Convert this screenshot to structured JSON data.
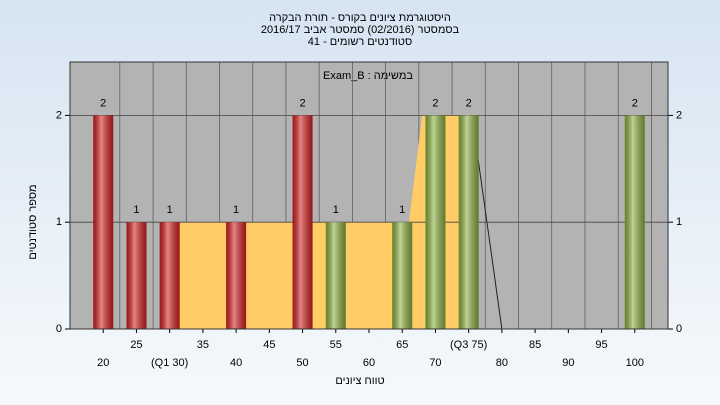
{
  "chart_data": {
    "type": "bar",
    "title": [
      "היסטוגרמת ציונים בקורס - תורת הבקרה",
      "בסמסטר  (02/2016)  סמסטר אביב 2016/17",
      "סטודנטים רשומים - 41"
    ],
    "subtitle": "Exam_B : במשימה",
    "x_label": "טווח ציונים",
    "y_label": "מספר סטודנטים",
    "x": [
      20,
      25,
      30,
      35,
      40,
      45,
      50,
      55,
      60,
      65,
      70,
      75,
      80,
      85,
      90,
      95,
      100
    ],
    "values": [
      2,
      1,
      1,
      0,
      1,
      0,
      2,
      1,
      0,
      1,
      2,
      2,
      0,
      0,
      0,
      0,
      2
    ],
    "value_labels": [
      "2",
      "1",
      "1",
      null,
      "1",
      null,
      "2",
      "1",
      null,
      "1",
      "2",
      "2",
      null,
      null,
      null,
      null,
      "2"
    ],
    "colors": [
      "#d42020",
      "#d42020",
      "#d42020",
      "#d42020",
      "#d42020",
      "#d42020",
      "#d42020",
      "#8db040",
      "#8db040",
      "#8db040",
      "#8db040",
      "#8db040",
      "#8db040",
      "#8db040",
      "#8db040",
      "#8db040",
      "#8db040"
    ],
    "xlim": [
      15,
      105
    ],
    "xticks": [
      20,
      25,
      {
        "value": 30,
        "label": "(Q1 30)"
      },
      35,
      40,
      45,
      50,
      55,
      60,
      65,
      70,
      {
        "value": 75,
        "label": "(Q3 75)"
      },
      80,
      85,
      90,
      95,
      100
    ],
    "ylim": [
      0,
      2.5
    ],
    "yticks": [
      0,
      1,
      2
    ],
    "y2lim": [
      0,
      2.5
    ],
    "y2ticks": [
      0,
      1,
      2
    ],
    "quartile_area": {
      "x": [
        31.5,
        66,
        68,
        75.5,
        80
      ],
      "values": [
        1,
        1,
        2,
        2,
        0
      ],
      "color": "#ffcc66"
    },
    "grid": true
  }
}
